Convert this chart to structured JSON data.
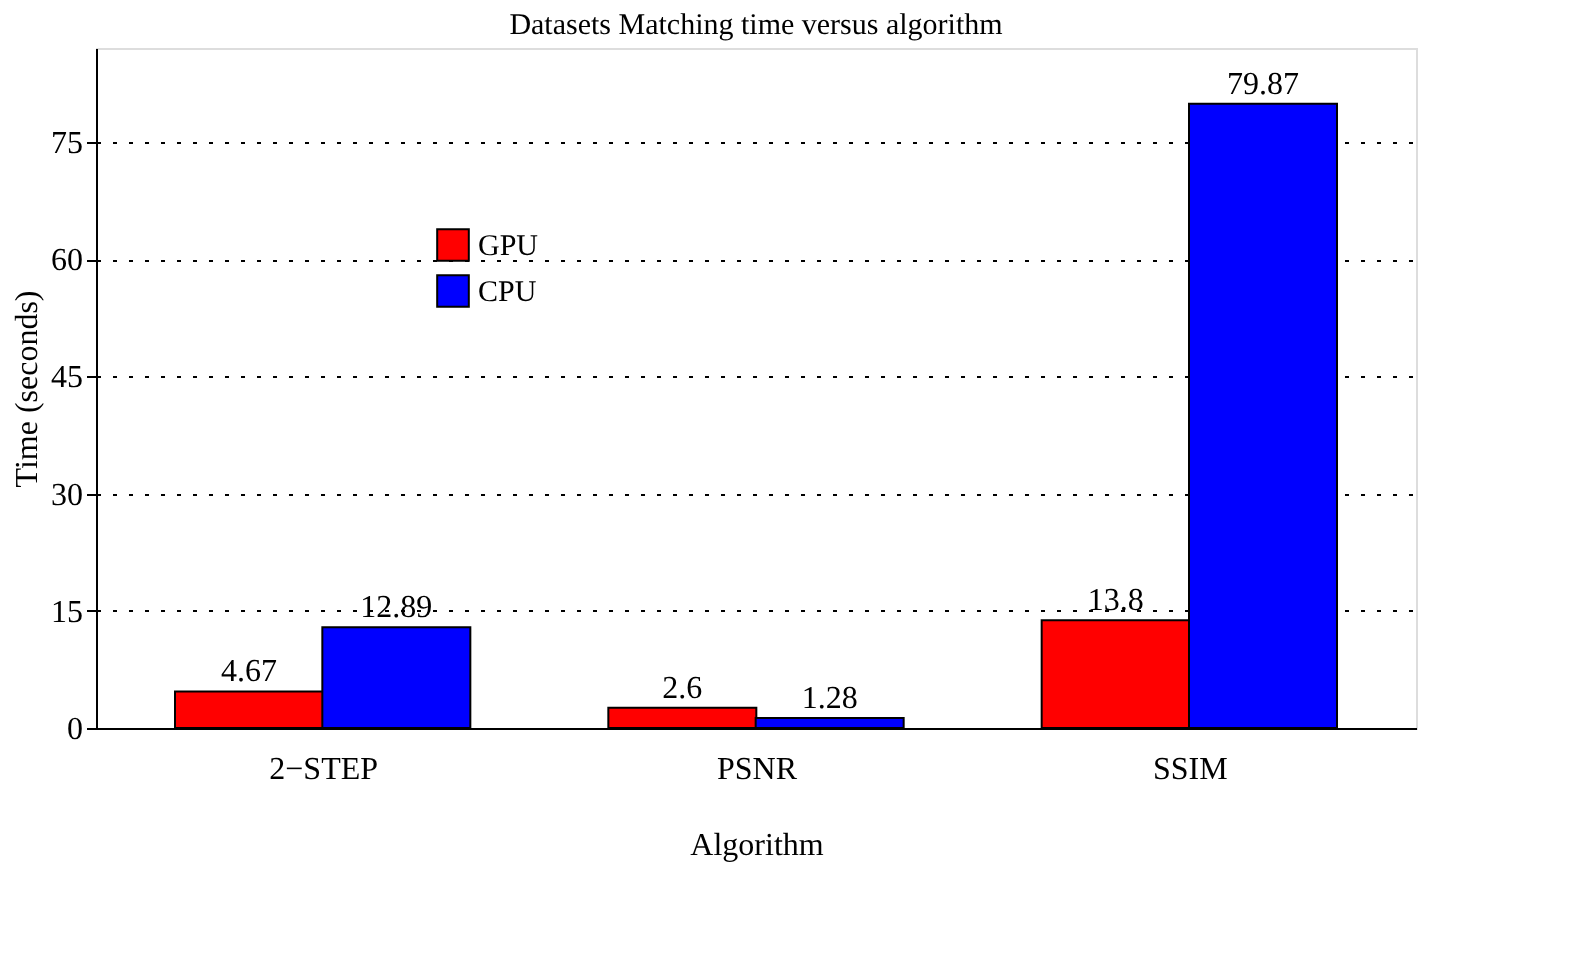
{
  "chart_data": {
    "type": "bar",
    "title": "Datasets Matching time versus algorithm",
    "xlabel": "Algorithm",
    "ylabel": "Time (seconds)",
    "categories": [
      "2−STEP",
      "PSNR",
      "SSIM"
    ],
    "series": [
      {
        "name": "GPU",
        "color": "#ff0000",
        "values": [
          4.67,
          2.6,
          13.8
        ]
      },
      {
        "name": "CPU",
        "color": "#0000ff",
        "values": [
          12.89,
          1.28,
          79.87
        ]
      }
    ],
    "ylim": [
      0,
      87
    ],
    "yticks": [
      0,
      15,
      30,
      45,
      60,
      75
    ],
    "grid": "y",
    "legend": "top left",
    "data_labels": true
  }
}
